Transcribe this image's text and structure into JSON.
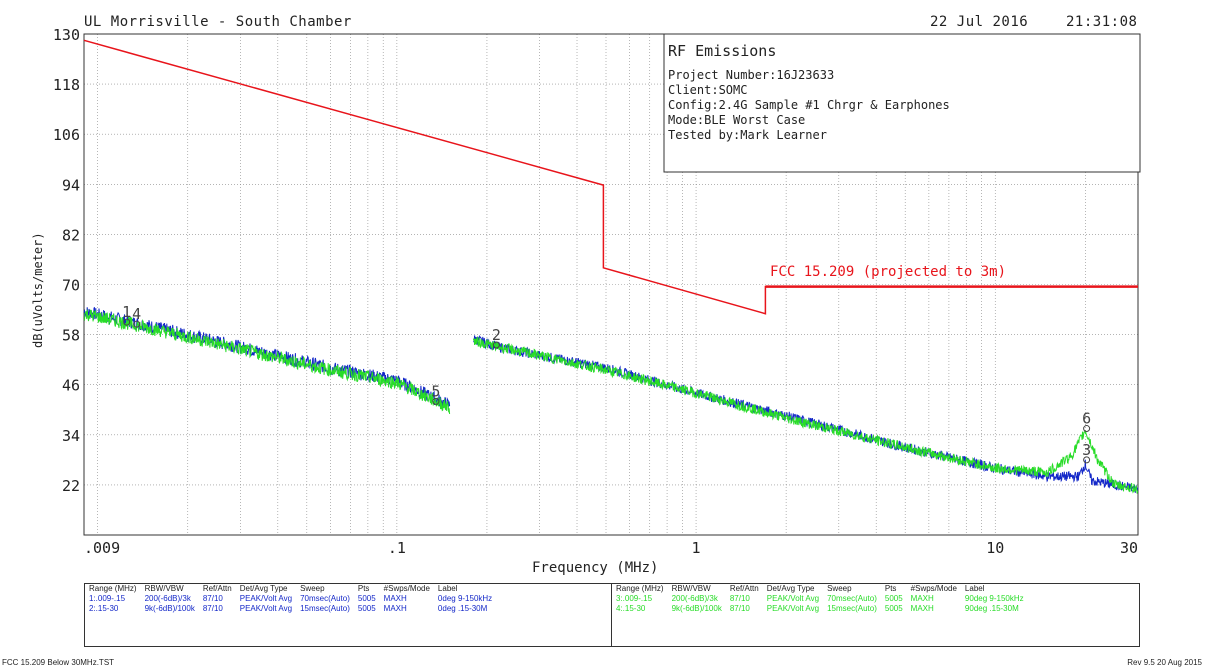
{
  "header": {
    "site": "UL Morrisville - South Chamber",
    "date": "22 Jul 2016",
    "time": "21:31:08"
  },
  "infobox": {
    "title": "RF Emissions",
    "lines": [
      "Project Number:16J23633",
      "Client:SOMC",
      "Config:2.4G Sample #1 Chrgr & Earphones",
      "Mode:BLE Worst Case",
      "Tested by:Mark Learner"
    ]
  },
  "colors": {
    "limit": "#e8141b",
    "series_blue": "#1428c8",
    "series_green": "#28dc28",
    "grid": "#888888"
  },
  "chart_data": {
    "type": "line",
    "xscale": "log",
    "xlim": [
      0.009,
      30
    ],
    "ylim": [
      10,
      130
    ],
    "xlabel": "Frequency (MHz)",
    "ylabel": "dB(uVolts/meter)",
    "yticks": [
      22,
      34,
      46,
      58,
      70,
      82,
      94,
      106,
      118,
      130
    ],
    "xticks": [
      {
        "v": 0.009,
        "label": ".009"
      },
      {
        "v": 0.1,
        "label": ".1"
      },
      {
        "v": 1,
        "label": "1"
      },
      {
        "v": 10,
        "label": "10"
      },
      {
        "v": 30,
        "label": "30"
      }
    ],
    "grid": true,
    "limit_line": {
      "name": "FCC 15.209 (projected to 3m)",
      "points": [
        [
          0.009,
          128.5
        ],
        [
          0.49,
          93.8
        ],
        [
          0.49,
          74.0
        ],
        [
          1.705,
          63.0
        ],
        [
          1.705,
          69.5
        ],
        [
          30,
          69.5
        ]
      ]
    },
    "series": [
      {
        "name": "1",
        "range": "0.009-0.15",
        "color": "#1428c8",
        "points": [
          [
            0.009,
            63.5
          ],
          [
            0.015,
            60.0
          ],
          [
            0.03,
            55.0
          ],
          [
            0.06,
            50.0
          ],
          [
            0.1,
            47.0
          ],
          [
            0.15,
            41.0
          ]
        ]
      },
      {
        "name": "2",
        "range": "0.15-30",
        "color": "#1428c8",
        "points": [
          [
            0.18,
            57.0
          ],
          [
            0.22,
            55.0
          ],
          [
            0.3,
            53.0
          ],
          [
            0.5,
            50.0
          ],
          [
            1,
            44.0
          ],
          [
            2,
            38.5
          ],
          [
            5,
            31.0
          ],
          [
            10,
            26.0
          ],
          [
            15,
            24.0
          ],
          [
            19,
            24.0
          ],
          [
            20,
            27.0
          ],
          [
            21,
            23.0
          ],
          [
            25,
            22.0
          ],
          [
            30,
            21.0
          ]
        ]
      },
      {
        "name": "3",
        "range": "0.009-0.15",
        "color": "#28dc28",
        "points": [
          [
            0.009,
            63.0
          ],
          [
            0.015,
            59.5
          ],
          [
            0.03,
            54.5
          ],
          [
            0.06,
            49.5
          ],
          [
            0.1,
            46.5
          ],
          [
            0.15,
            40.5
          ]
        ]
      },
      {
        "name": "4",
        "range": "0.15-30",
        "color": "#28dc28",
        "points": [
          [
            0.18,
            56.5
          ],
          [
            0.22,
            55.0
          ],
          [
            0.3,
            53.0
          ],
          [
            0.5,
            49.5
          ],
          [
            1,
            44.0
          ],
          [
            2,
            38.0
          ],
          [
            5,
            31.0
          ],
          [
            10,
            26.0
          ],
          [
            15,
            25.0
          ],
          [
            18,
            29.0
          ],
          [
            20,
            35.0
          ],
          [
            22,
            28.0
          ],
          [
            25,
            22.0
          ],
          [
            30,
            21.0
          ]
        ]
      }
    ],
    "markers": [
      {
        "label": "1",
        "x": 0.0125,
        "y": 61.0
      },
      {
        "label": "4",
        "x": 0.0135,
        "y": 60.5
      },
      {
        "label": "5",
        "x": 0.135,
        "y": 42.0
      },
      {
        "label": "2",
        "x": 0.215,
        "y": 55.5
      },
      {
        "label": "6",
        "x": 20.2,
        "y": 35.5
      },
      {
        "label": "3",
        "x": 20.2,
        "y": 28.0
      }
    ]
  },
  "table": {
    "headers": [
      "Range (MHz)",
      "RBW/VBW",
      "Ref/Attn",
      "Det/Avg Type",
      "Sweep",
      "Pts",
      "#Swps/Mode",
      "Label"
    ],
    "left_rows": [
      [
        "1:.009-.15",
        "200(-6dB)/3k",
        "87/10",
        "PEAK/Volt Avg",
        "70msec(Auto)",
        "5005",
        "MAXH",
        "0deg 9-150kHz"
      ],
      [
        "2:.15-30",
        "9k(-6dB)/100k",
        "87/10",
        "PEAK/Volt Avg",
        "15msec(Auto)",
        "5005",
        "MAXH",
        "0deg .15-30M"
      ]
    ],
    "right_rows": [
      [
        "3:.009-.15",
        "200(-6dB)/3k",
        "87/10",
        "PEAK/Volt Avg",
        "70msec(Auto)",
        "5005",
        "MAXH",
        "90deg 9-150kHz"
      ],
      [
        "4:.15-30",
        "9k(-6dB)/100k",
        "87/10",
        "PEAK/Volt Avg",
        "15msec(Auto)",
        "5005",
        "MAXH",
        "90deg .15-30M"
      ]
    ]
  },
  "footer": {
    "left": "FCC 15.209 Below 30MHz.TST",
    "right": "Rev 9.5 20 Aug 2015"
  }
}
